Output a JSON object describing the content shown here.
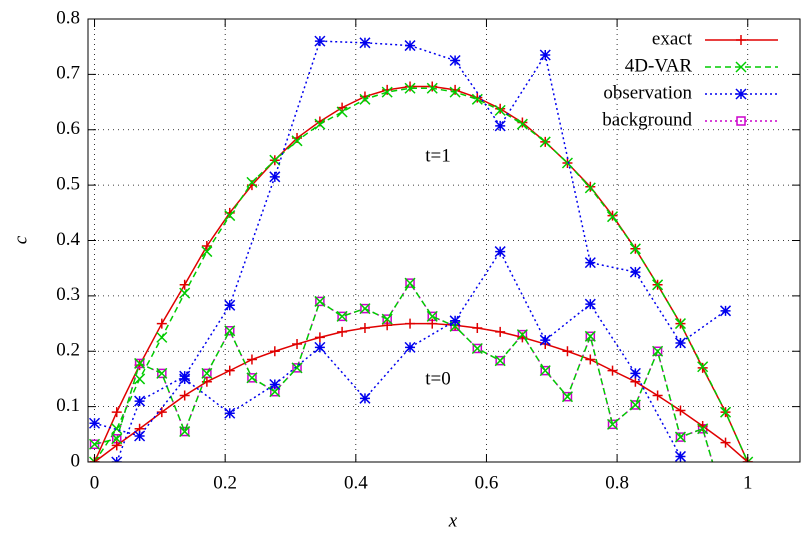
{
  "chart_data": {
    "type": "line",
    "xlabel": "x",
    "ylabel": "c",
    "annotations": [
      "t=1",
      "t=0"
    ],
    "xlim": [
      -0.01,
      1.08
    ],
    "ylim": [
      0,
      0.8
    ],
    "xticks": [
      0,
      0.2,
      0.4,
      0.6,
      0.8,
      1
    ],
    "yticks": [
      0,
      0.1,
      0.2,
      0.3,
      0.4,
      0.5,
      0.6,
      0.7,
      0.8
    ],
    "grid": true,
    "legend": "top-right",
    "x": [
      0,
      0.034,
      0.069,
      0.103,
      0.138,
      0.172,
      0.207,
      0.241,
      0.276,
      0.31,
      0.345,
      0.379,
      0.414,
      0.448,
      0.483,
      0.517,
      0.552,
      0.586,
      0.621,
      0.655,
      0.69,
      0.724,
      0.759,
      0.793,
      0.828,
      0.862,
      0.897,
      0.931,
      0.966,
      1
    ],
    "series": [
      {
        "name": "exact",
        "color": "#e00000",
        "marker": "plus",
        "dash": "solid",
        "values": [
          0,
          0.09,
          0.175,
          0.25,
          0.32,
          0.39,
          0.45,
          0.5,
          0.545,
          0.585,
          0.615,
          0.64,
          0.66,
          0.672,
          0.678,
          0.678,
          0.672,
          0.658,
          0.638,
          0.613,
          0.578,
          0.54,
          0.497,
          0.445,
          0.385,
          0.32,
          0.25,
          0.17,
          0.09,
          0
        ]
      },
      {
        "name": "4D-VAR",
        "color": "#00cc00",
        "marker": "cross",
        "dash": "dashed",
        "values": [
          0,
          0.06,
          0.15,
          0.225,
          0.305,
          0.38,
          0.445,
          0.505,
          0.545,
          0.58,
          0.61,
          0.632,
          0.655,
          0.668,
          0.675,
          0.675,
          0.668,
          0.655,
          0.635,
          0.61,
          0.578,
          0.54,
          0.495,
          0.443,
          0.385,
          0.32,
          0.25,
          0.172,
          0.09,
          0
        ]
      },
      {
        "name": "observation",
        "color": "#0000ee",
        "marker": "star",
        "dash": "dotted",
        "x": [
          0.034,
          0.069,
          0.138,
          0.207,
          0.276,
          0.345,
          0.414,
          0.483,
          0.552,
          0.621,
          0.69,
          0.759,
          0.828,
          0.897,
          0.966
        ],
        "values": [
          0,
          0.11,
          0.155,
          0.283,
          0.515,
          0.76,
          0.757,
          0.752,
          0.725,
          0.607,
          0.735,
          0.36,
          0.343,
          0.215,
          0.273
        ]
      },
      {
        "name": "background",
        "color": "#cc00cc",
        "marker": "square",
        "dash": "dotted",
        "values": [
          0.032,
          0.042,
          0.178,
          0.16,
          0.055,
          0.16,
          0.237,
          0.152,
          0.127,
          0.17,
          0.29,
          0.263,
          0.277,
          0.258,
          0.323,
          0.263,
          0.245,
          0.205,
          0.183,
          0.23,
          0.165,
          0.118,
          0.227,
          0.068,
          0.103,
          0.2,
          0.045,
          0.06,
          -0.08,
          null
        ]
      },
      {
        "color": "#e00000",
        "marker": "plus",
        "dash": "solid",
        "values": [
          0,
          0.03,
          0.06,
          0.09,
          0.12,
          0.145,
          0.165,
          0.185,
          0.2,
          0.213,
          0.225,
          0.235,
          0.242,
          0.247,
          0.25,
          0.25,
          0.247,
          0.242,
          0.235,
          0.225,
          0.213,
          0.2,
          0.185,
          0.165,
          0.145,
          0.12,
          0.093,
          0.065,
          0.035,
          0
        ]
      },
      {
        "color": "#00cc00",
        "marker": "cross",
        "dash": "dashed",
        "values": [
          0.032,
          0.042,
          0.178,
          0.16,
          0.055,
          0.16,
          0.237,
          0.152,
          0.127,
          0.17,
          0.29,
          0.263,
          0.277,
          0.258,
          0.323,
          0.263,
          0.245,
          0.205,
          0.183,
          0.23,
          0.165,
          0.118,
          0.227,
          0.068,
          0.103,
          0.2,
          0.045,
          0.06,
          -0.08,
          null
        ]
      },
      {
        "color": "#0000ee",
        "marker": "star",
        "dash": "dotted",
        "x": [
          0,
          0.069,
          0.138,
          0.207,
          0.276,
          0.345,
          0.414,
          0.483,
          0.552,
          0.621,
          0.69,
          0.759,
          0.828,
          0.897
        ],
        "values": [
          0.07,
          0.047,
          0.15,
          0.088,
          0.14,
          0.207,
          0.115,
          0.207,
          0.255,
          0.38,
          0.22,
          0.285,
          0.16,
          0.01
        ]
      }
    ]
  }
}
